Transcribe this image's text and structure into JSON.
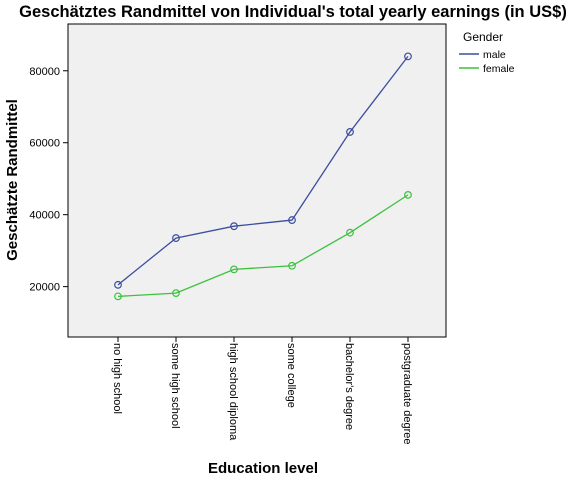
{
  "chart_data": {
    "type": "line",
    "title": "Geschätztes Randmittel von Individual's total yearly earnings (in US$)",
    "xlabel": "Education level",
    "ylabel": "Geschätzte Randmittel",
    "categories": [
      "no high school",
      "some high school",
      "high school diploma",
      "some college",
      "bachelor's degree",
      "postgraduate degree"
    ],
    "series": [
      {
        "name": "male",
        "values": [
          20500,
          33500,
          36800,
          38500,
          63000,
          84000
        ],
        "color": "#3c4ea0"
      },
      {
        "name": "female",
        "values": [
          17300,
          18200,
          24800,
          25800,
          35000,
          45500
        ],
        "color": "#3cc13c"
      }
    ],
    "ylim": [
      6000,
      93000
    ],
    "yticks": [
      20000,
      40000,
      60000,
      80000
    ],
    "ytick_labels": [
      "20000",
      "40000",
      "60000",
      "80000"
    ],
    "legend": {
      "title": "Gender",
      "placement": "right"
    },
    "grid": false,
    "plot_background": "#f0f0f0"
  }
}
